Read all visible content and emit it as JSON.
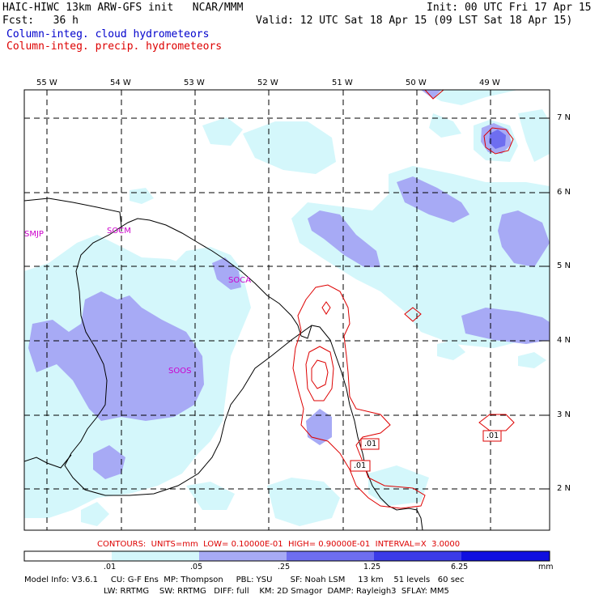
{
  "header": {
    "model_line": "HAIC-HIWC 13km ARW-GFS init   NCAR/MMM",
    "init_line": "Init: 00 UTC Fri 17 Apr 15",
    "fcst_line": "Fcst:   36 h",
    "valid_line": "Valid: 12 UTC Sat 18 Apr 15 (09 LST Sat 18 Apr 15)",
    "field1": "Column-integ. cloud hydrometeors",
    "field2": "Column-integ. precip. hydrometeors"
  },
  "map": {
    "lon_labels": [
      "55 W",
      "54 W",
      "53 W",
      "52 W",
      "51 W",
      "50 W",
      "49 W"
    ],
    "lat_labels": [
      "7 N",
      "6 N",
      "5 N",
      "4 N",
      "3 N",
      "2 N"
    ],
    "stations": [
      {
        "id": "SMJP",
        "lon": -55.3,
        "lat": 5.45
      },
      {
        "id": "SOCM",
        "lon": -53.95,
        "lat": 5.5
      },
      {
        "id": "SOCA",
        "lon": -52.35,
        "lat": 4.85
      },
      {
        "id": "SOOS",
        "lon": -53.1,
        "lat": 3.65
      }
    ],
    "contour_labels": [
      {
        "text": ".01",
        "lon": -50.65,
        "lat": 2.65
      },
      {
        "text": ".01",
        "lon": -50.9,
        "lat": 2.3
      },
      {
        "text": ".01",
        "lon": -49.0,
        "lat": 2.8
      }
    ],
    "colors": {
      "fill1": "#d4f7fb",
      "fill2": "#a7aaf5",
      "fill3": "#6e6ef0",
      "fill4": "#3b3be8",
      "fill5": "#1010e0",
      "contour": "#dd0000",
      "coast": "#000000"
    }
  },
  "contours_text": "CONTOURS:  UNITS=mm  LOW= 0.10000E-01  HIGH= 0.90000E-01  INTERVAL=X  3.0000",
  "colorbar": {
    "labels": [
      ".01",
      ".05",
      ".25",
      "1.25",
      "6.25"
    ],
    "unit": "mm",
    "colors": [
      "#ffffff",
      "#d4f7fb",
      "#a7aaf5",
      "#6e6ef0",
      "#3b3be8",
      "#1010e0"
    ]
  },
  "footer": {
    "line1": "Model Info: V3.6.1     CU: G-F Ens  MP: Thompson     PBL: YSU       SF: Noah LSM     13 km    51 levels   60 sec",
    "line2": "LW: RRTMG    SW: RRTMG   DIFF: full    KM: 2D Smagor  DAMP: Rayleigh3  SFLAY: MM5"
  }
}
